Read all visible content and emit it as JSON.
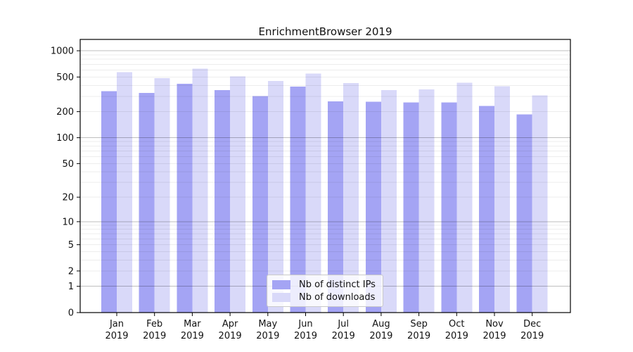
{
  "title": "EnrichmentBrowser 2019",
  "chart_data": {
    "type": "bar",
    "title": "EnrichmentBrowser 2019",
    "categories": [
      "Jan 2019",
      "Feb 2019",
      "Mar 2019",
      "Apr 2019",
      "May 2019",
      "Jun 2019",
      "Jul 2019",
      "Aug 2019",
      "Sep 2019",
      "Oct 2019",
      "Nov 2019",
      "Dec 2019"
    ],
    "x_tick_labels": [
      [
        "Jan",
        "2019"
      ],
      [
        "Feb",
        "2019"
      ],
      [
        "Mar",
        "2019"
      ],
      [
        "Apr",
        "2019"
      ],
      [
        "May",
        "2019"
      ],
      [
        "Jun",
        "2019"
      ],
      [
        "Jul",
        "2019"
      ],
      [
        "Aug",
        "2019"
      ],
      [
        "Sep",
        "2019"
      ],
      [
        "Oct",
        "2019"
      ],
      [
        "Nov",
        "2019"
      ],
      [
        "Dec",
        "2019"
      ]
    ],
    "series": [
      {
        "name": "Nb of distinct IPs",
        "color": "#a4a4f4",
        "values": [
          345,
          327,
          417,
          355,
          301,
          387,
          262,
          259,
          254,
          255,
          232,
          186
        ]
      },
      {
        "name": "Nb of downloads",
        "color": "#d9d9f9",
        "values": [
          566,
          486,
          623,
          510,
          452,
          550,
          425,
          352,
          359,
          429,
          391,
          307
        ]
      }
    ],
    "xlabel": "",
    "ylabel": "",
    "yscale": "log1p",
    "y_ticks": [
      1000,
      500,
      200,
      100,
      50,
      20,
      10,
      5,
      2,
      1,
      0
    ],
    "ylim": [
      0,
      1350
    ],
    "grid": true,
    "legend_position": "lower center",
    "colors": {
      "major_gridline": "#b0b0b0",
      "minor_gridline": "#ececec",
      "axis": "#000000",
      "text": "#111111"
    }
  }
}
